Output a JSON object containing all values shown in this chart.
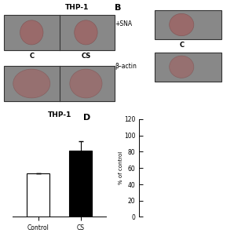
{
  "title_A": "THP-1",
  "title_B": "B",
  "title_C": "THP-1",
  "title_D": "D",
  "label_C": "C",
  "label_CS": "CS",
  "label_SNA": "+SNA",
  "label_actin": "β–actin",
  "bar_categories": [
    "Control",
    "CS"
  ],
  "bar_values": [
    58,
    88
  ],
  "bar_errors": [
    0,
    12
  ],
  "bar_colors": [
    "white",
    "black"
  ],
  "bar_edge_colors": [
    "black",
    "black"
  ],
  "ylabel_D": "% of control",
  "ylim_D": [
    0,
    120
  ],
  "yticks_D": [
    0,
    20,
    40,
    60,
    80,
    100,
    120
  ],
  "blot_bg": "#888888",
  "blot_border": "#444444",
  "dot_fill": "#707070",
  "dot_edge": "#505050",
  "dot_fill2": "#808080",
  "fig_bg": "#ffffff"
}
